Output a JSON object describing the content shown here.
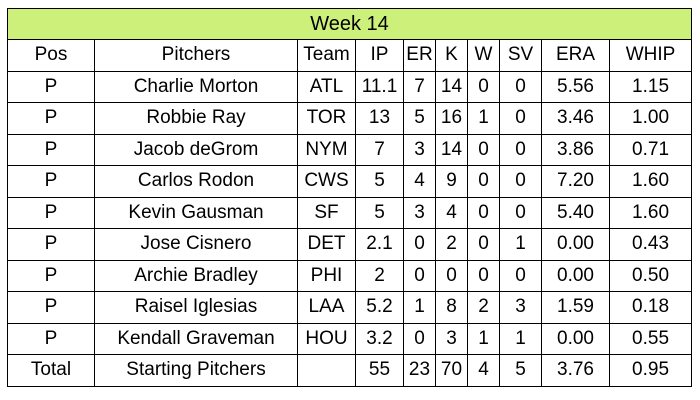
{
  "title": "Week 14",
  "columns": [
    "Pos",
    "Pitchers",
    "Team",
    "IP",
    "ER",
    "K",
    "W",
    "SV",
    "ERA",
    "WHIP"
  ],
  "rows": [
    [
      "P",
      "Charlie Morton",
      "ATL",
      "11.1",
      "7",
      "14",
      "0",
      "0",
      "5.56",
      "1.15"
    ],
    [
      "P",
      "Robbie Ray",
      "TOR",
      "13",
      "5",
      "16",
      "1",
      "0",
      "3.46",
      "1.00"
    ],
    [
      "P",
      "Jacob deGrom",
      "NYM",
      "7",
      "3",
      "14",
      "0",
      "0",
      "3.86",
      "0.71"
    ],
    [
      "P",
      "Carlos Rodon",
      "CWS",
      "5",
      "4",
      "9",
      "0",
      "0",
      "7.20",
      "1.60"
    ],
    [
      "P",
      "Kevin Gausman",
      "SF",
      "5",
      "3",
      "4",
      "0",
      "0",
      "5.40",
      "1.60"
    ],
    [
      "P",
      "Jose Cisnero",
      "DET",
      "2.1",
      "0",
      "2",
      "0",
      "1",
      "0.00",
      "0.43"
    ],
    [
      "P",
      "Archie Bradley",
      "PHI",
      "2",
      "0",
      "0",
      "0",
      "0",
      "0.00",
      "0.50"
    ],
    [
      "P",
      "Raisel Iglesias",
      "LAA",
      "5.2",
      "1",
      "8",
      "2",
      "3",
      "1.59",
      "0.18"
    ],
    [
      "P",
      "Kendall Graveman",
      "HOU",
      "3.2",
      "0",
      "3",
      "1",
      "1",
      "0.00",
      "0.55"
    ]
  ],
  "total": [
    "Total",
    "Starting Pitchers",
    "",
    "55",
    "23",
    "70",
    "4",
    "5",
    "3.76",
    "0.95"
  ],
  "colors": {
    "title_bg": "#cdf07a",
    "grid": "#000000"
  }
}
